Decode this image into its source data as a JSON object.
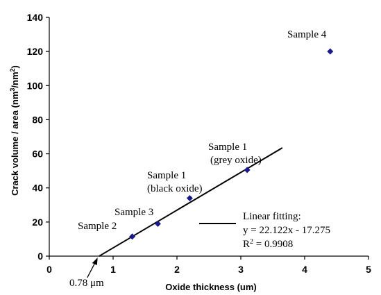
{
  "chart_data": {
    "type": "scatter",
    "title": "",
    "xlabel": "Oxide thickness (um)",
    "ylabel_parts": [
      "Crack volume / area (nm",
      "3",
      "/nm",
      "2",
      ")"
    ],
    "xlim": [
      0,
      5
    ],
    "ylim": [
      0,
      140
    ],
    "xticks": [
      0,
      1,
      2,
      3,
      4,
      5
    ],
    "yticks": [
      0,
      20,
      40,
      60,
      80,
      100,
      120,
      140
    ],
    "grid": false,
    "marker_color": "#1a1a8c",
    "points": [
      {
        "x": 1.3,
        "y": 11.5,
        "label": "Sample 2"
      },
      {
        "x": 1.7,
        "y": 19,
        "label": "Sample 3"
      },
      {
        "x": 2.2,
        "y": 34,
        "label": "Sample 1",
        "label2": "(black oxide)"
      },
      {
        "x": 3.1,
        "y": 50.5,
        "label": "Sample 1",
        "label2": "(grey oxide)"
      },
      {
        "x": 4.4,
        "y": 120,
        "label": "Sample 4"
      }
    ],
    "fit_line": {
      "x_start": 0.78,
      "x_end": 3.65
    },
    "legend": {
      "line1": "Linear fitting:",
      "line2": "y = 22.122x - 17.275",
      "line3_prefix": "R",
      "line3_sup": "2",
      "line3_suffix": " = 0.9908"
    },
    "intercept_annotation": {
      "x": 0.78,
      "text": "0.78 μm"
    }
  }
}
